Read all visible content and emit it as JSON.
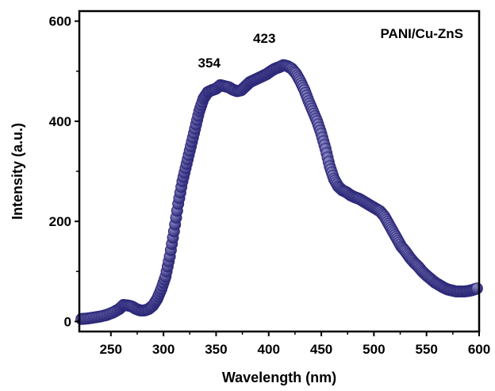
{
  "chart_data": {
    "type": "scatter",
    "title": "",
    "xlabel": "Wavelength (nm)",
    "ylabel": "Intensity (a.u.)",
    "xlim": [
      220,
      600
    ],
    "ylim": [
      -20,
      620
    ],
    "xticks": [
      250,
      300,
      350,
      400,
      450,
      500,
      550,
      600
    ],
    "yticks": [
      0,
      200,
      400,
      600
    ],
    "grid": false,
    "legend": {
      "text": "PANI/Cu-ZnS",
      "position": "top-right"
    },
    "annotations": [
      {
        "text": "354",
        "x": 354,
        "y": 485
      },
      {
        "text": "423",
        "x": 423,
        "y": 525
      }
    ],
    "colors": {
      "marker": "#2e2a7a",
      "marker_highlight": "#8f8cc8",
      "axis": "#000000"
    },
    "series": [
      {
        "name": "PANI/Cu-ZnS",
        "x": [
          222,
          228,
          234,
          240,
          246,
          252,
          258,
          262,
          266,
          270,
          274,
          278,
          282,
          286,
          290,
          294,
          298,
          302,
          306,
          310,
          314,
          318,
          322,
          326,
          330,
          334,
          338,
          342,
          346,
          350,
          354,
          358,
          362,
          366,
          370,
          374,
          378,
          382,
          386,
          390,
          394,
          398,
          402,
          406,
          410,
          414,
          418,
          422,
          426,
          430,
          434,
          438,
          442,
          446,
          450,
          454,
          458,
          462,
          466,
          470,
          474,
          478,
          482,
          486,
          490,
          494,
          498,
          502,
          506,
          510,
          514,
          518,
          522,
          526,
          530,
          534,
          538,
          542,
          546,
          550,
          554,
          558,
          562,
          566,
          570,
          574,
          578,
          582,
          586,
          590,
          594,
          598
        ],
        "y": [
          5,
          6,
          8,
          10,
          13,
          18,
          25,
          33,
          32,
          30,
          25,
          22,
          22,
          25,
          32,
          45,
          65,
          90,
          130,
          180,
          235,
          280,
          315,
          350,
          385,
          420,
          445,
          458,
          462,
          465,
          472,
          470,
          468,
          463,
          460,
          462,
          470,
          478,
          482,
          486,
          490,
          494,
          500,
          505,
          508,
          512,
          510,
          505,
          495,
          480,
          462,
          440,
          420,
          400,
          375,
          345,
          310,
          285,
          270,
          262,
          258,
          252,
          248,
          245,
          240,
          235,
          230,
          225,
          220,
          210,
          195,
          180,
          165,
          150,
          140,
          128,
          118,
          110,
          100,
          92,
          85,
          78,
          73,
          68,
          64,
          62,
          60,
          60,
          60,
          61,
          63,
          66
        ]
      }
    ]
  }
}
